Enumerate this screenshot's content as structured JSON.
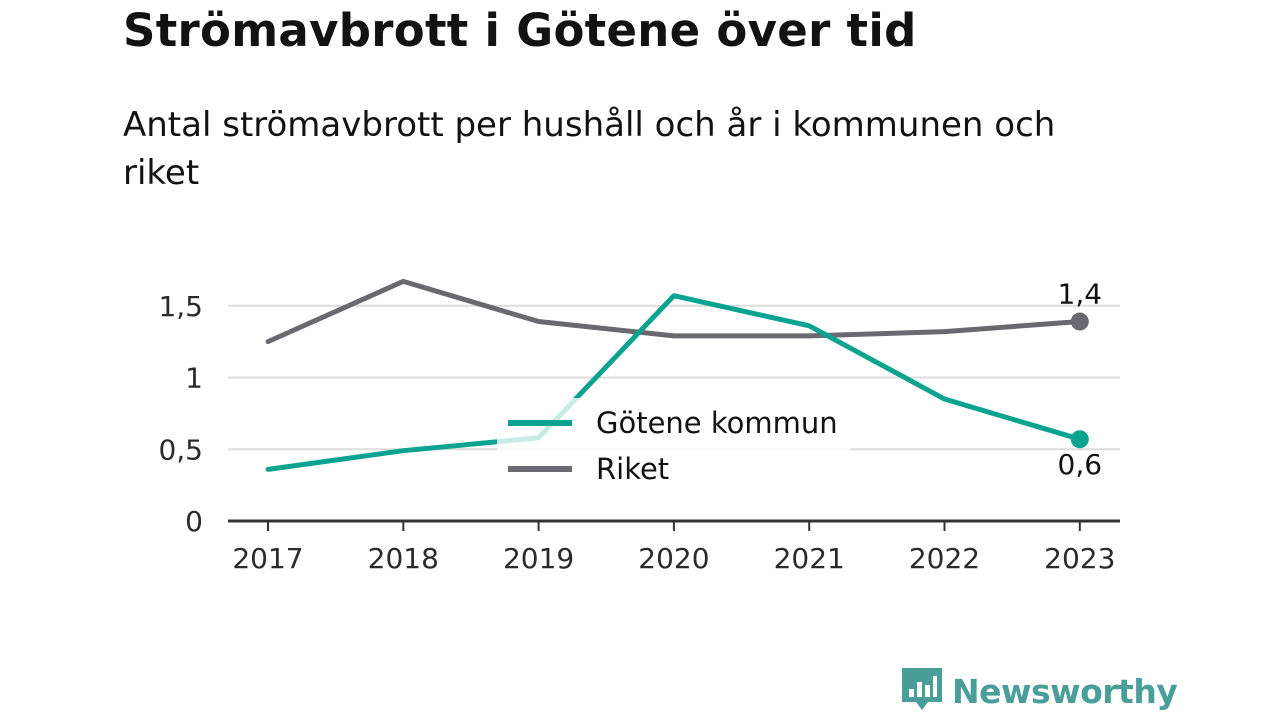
{
  "header": {
    "title": "Strömavbrott i Götene över tid",
    "subtitle": "Antal strömavbrott per hushåll och år i kommunen och riket"
  },
  "brand": {
    "name": "Newsworthy",
    "icon": "bar-chart-icon",
    "color": "#4a9e9a"
  },
  "chart_data": {
    "type": "line",
    "x": [
      "2017",
      "2018",
      "2019",
      "2020",
      "2021",
      "2022",
      "2023"
    ],
    "series": [
      {
        "name": "Götene kommun",
        "color": "#0aa38f",
        "values": [
          0.36,
          0.49,
          0.58,
          1.57,
          1.36,
          0.85,
          0.57
        ],
        "end_label": "0,6"
      },
      {
        "name": "Riket",
        "color": "#6b6970",
        "values": [
          1.25,
          1.67,
          1.39,
          1.29,
          1.29,
          1.32,
          1.39
        ],
        "end_label": "1,4"
      }
    ],
    "yticks": [
      {
        "value": 0,
        "label": "0"
      },
      {
        "value": 0.5,
        "label": "0,5"
      },
      {
        "value": 1,
        "label": "1"
      },
      {
        "value": 1.5,
        "label": "1,5"
      }
    ],
    "ylim": [
      0,
      1.75
    ],
    "grid": true,
    "legend_position": "center-bottom",
    "xlabel": "",
    "ylabel": ""
  }
}
